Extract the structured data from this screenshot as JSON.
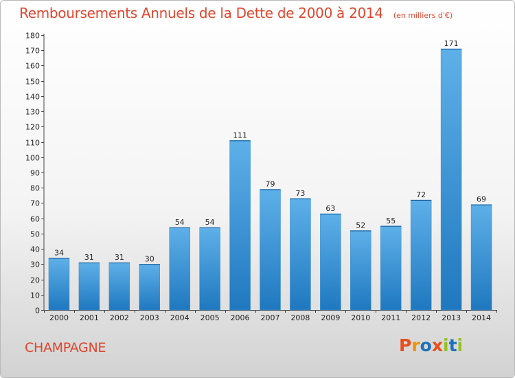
{
  "header": {
    "title": "Remboursements Annuels de la Dette de 2000 à 2014",
    "subtitle": "(en milliers d'€)"
  },
  "footer": {
    "commune": "CHAMPAGNE",
    "logo_text": "Proxiti"
  },
  "colors": {
    "title": "#e0462e",
    "bar_light": "#5eb0e8",
    "bar_dark": "#1f78bf",
    "logo_letters": [
      "#e94e1b",
      "#f39200",
      "#1d71b8",
      "#e94e1b",
      "#95c11f",
      "#1d71b8",
      "#95c11f"
    ]
  },
  "chart_data": {
    "type": "bar",
    "categories": [
      "2000",
      "2001",
      "2002",
      "2003",
      "2004",
      "2005",
      "2006",
      "2007",
      "2008",
      "2009",
      "2010",
      "2011",
      "2012",
      "2013",
      "2014"
    ],
    "values": [
      34,
      31,
      31,
      30,
      54,
      54,
      111,
      79,
      73,
      63,
      52,
      55,
      72,
      171,
      69
    ],
    "title": "Remboursements Annuels de la Dette de 2000 à 2014",
    "subtitle": "(en milliers d'€)",
    "xlabel": "",
    "ylabel": "",
    "ylim": [
      0,
      180
    ],
    "ytick_step": 10,
    "grid": false,
    "data_labels": true,
    "legend": "none"
  }
}
